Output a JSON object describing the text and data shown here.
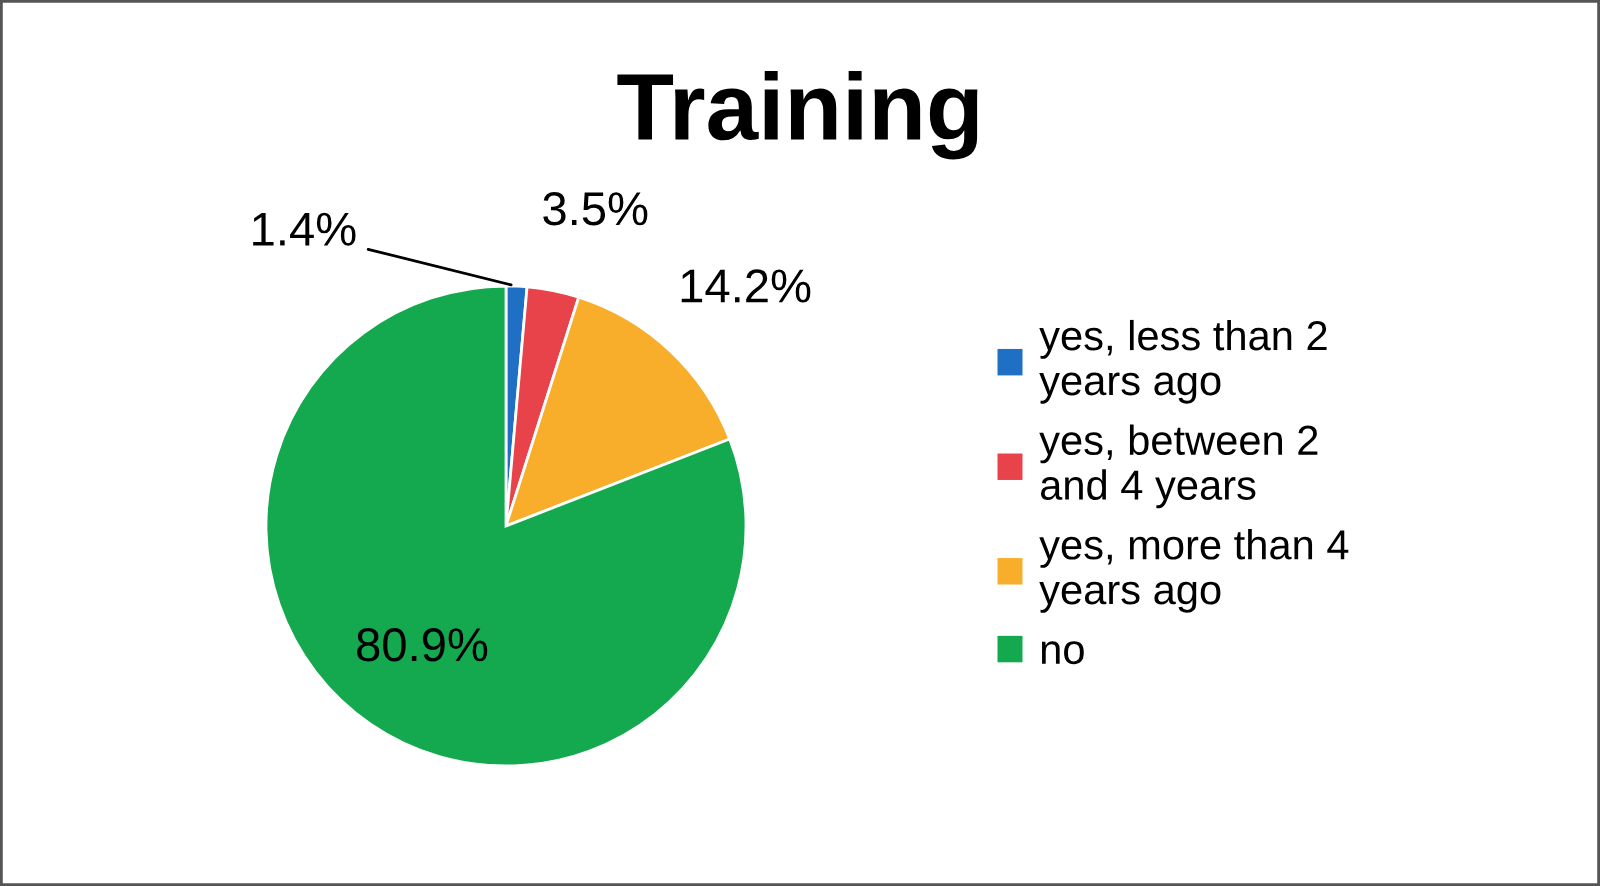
{
  "chart_data": {
    "type": "pie",
    "title": "Training",
    "categories": [
      "yes, less than 2 years ago",
      "yes, between 2 and 4 years",
      "yes, more than 4 years ago",
      "no"
    ],
    "values": [
      1.4,
      3.5,
      14.2,
      80.9
    ],
    "colors": [
      "#1f6fc4",
      "#e8434a",
      "#f8ae2b",
      "#14a94f"
    ],
    "value_labels": [
      "1.4%",
      "3.5%",
      "14.2%",
      "80.9%"
    ],
    "legend": "right"
  }
}
